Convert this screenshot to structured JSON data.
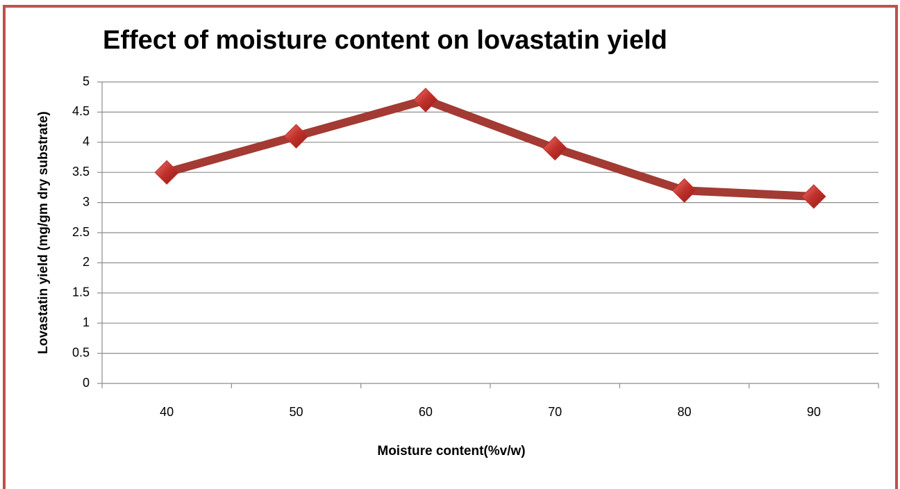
{
  "chart_data": {
    "type": "line",
    "title": "Effect of moisture content on lovastatin yield",
    "x_label": "Moisture content(%v/w)",
    "y_label": "Lovastatin yield (mg/gm dry substrate)",
    "categories": [
      "40",
      "50",
      "60",
      "70",
      "80",
      "90"
    ],
    "series": [
      {
        "name": "Lovastatin yield",
        "color": "#a33a33",
        "marker_color": "#c0302a",
        "values": [
          3.5,
          4.1,
          4.7,
          3.9,
          3.2,
          3.1
        ]
      }
    ],
    "ylim": [
      0,
      5
    ],
    "yticks": [
      0,
      0.5,
      1,
      1.5,
      2,
      2.5,
      3,
      3.5,
      4,
      4.5,
      5
    ],
    "grid": true,
    "legend": false
  }
}
